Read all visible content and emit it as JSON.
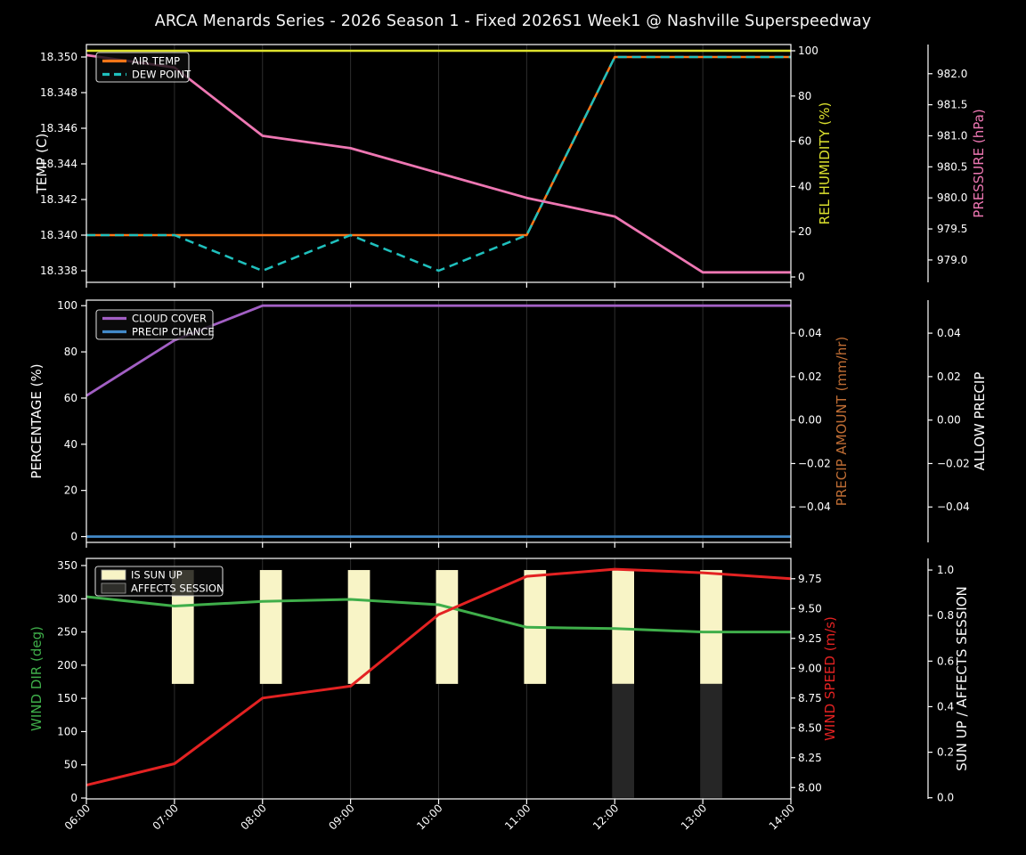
{
  "title": "ARCA Menards Series - 2026 Season 1 - Fixed 2026S1 Week1 @ Nashville Superspeedway",
  "colors": {
    "background": "#000000",
    "foreground": "#ffffff",
    "grid": "#2e2e2e",
    "air_temp": "#fd7618",
    "dew_point": "#1fc0bd",
    "rel_humidity": "#dde22e",
    "pressure": "#ee77b3",
    "cloud_cover": "#a25fc4",
    "precip_chance": "#4289c8",
    "precip_amount": "#bf6d34",
    "wind_dir": "#3fae4a",
    "wind_speed": "#e32222",
    "sun_up_bar": "#f8f4c6",
    "affects_session_bar": "#262626"
  },
  "chart_data": {
    "type": "line",
    "x": {
      "label": "",
      "min": 6,
      "max": 14,
      "tick_hours": [
        6,
        7,
        8,
        9,
        10,
        11,
        12,
        13,
        14
      ],
      "tick_labels": [
        "06:00",
        "07:00",
        "08:00",
        "09:00",
        "10:00",
        "11:00",
        "12:00",
        "13:00",
        "14:00"
      ]
    },
    "panels": [
      {
        "name": "temp-humidity-pressure",
        "axes": {
          "left": {
            "title": "TEMP (C)",
            "color": "#ffffff",
            "range": [
              18.33735,
              18.3507
            ],
            "ticks": [
              18.35,
              18.348,
              18.346,
              18.344,
              18.342,
              18.34,
              18.338
            ],
            "tick_labels": [
              "18.350",
              "18.348",
              "18.346",
              "18.344",
              "18.342",
              "18.340",
              "18.338"
            ]
          },
          "right1": {
            "title": "REL HUMIDITY (%)",
            "color": "#dde22e",
            "range": [
              -2.36,
              102.76
            ],
            "ticks": [
              100,
              80,
              60,
              40,
              20,
              0
            ],
            "tick_labels": [
              "100",
              "80",
              "60",
              "40",
              "20",
              "0"
            ]
          },
          "right2": {
            "title": "PRESSURE (hPa)",
            "color": "#ee77b3",
            "range": [
              978.64,
              982.47
            ],
            "ticks": [
              982.0,
              981.5,
              981.0,
              980.5,
              980.0,
              979.5,
              979.0
            ],
            "tick_labels": [
              "982.0",
              "981.5",
              "981.0",
              "980.5",
              "980.0",
              "979.5",
              "979.0"
            ]
          }
        },
        "series": [
          {
            "name": "AIR TEMP",
            "axis": "left",
            "color": "#fd7618",
            "style": "solid",
            "width": 2.5,
            "x": [
              6,
              7,
              8,
              9,
              10,
              11,
              12,
              13,
              14
            ],
            "y": [
              18.34,
              18.34,
              18.34,
              18.34,
              18.34,
              18.34,
              18.35,
              18.35,
              18.35
            ]
          },
          {
            "name": "DEW POINT",
            "axis": "left",
            "color": "#1fc0bd",
            "style": "dashed",
            "width": 2.5,
            "x": [
              6,
              7,
              8,
              9,
              10,
              11,
              12,
              13,
              14
            ],
            "y": [
              18.34,
              18.34,
              18.338,
              18.34,
              18.338,
              18.34,
              18.35,
              18.35,
              18.35
            ]
          },
          {
            "name": "REL HUMIDITY",
            "axis": "right1",
            "color": "#dde22e",
            "style": "solid",
            "width": 2.5,
            "x": [
              6,
              7,
              8,
              9,
              10,
              11,
              12,
              13,
              14
            ],
            "y": [
              100,
              100,
              100,
              100,
              100,
              100,
              100,
              100,
              100
            ]
          },
          {
            "name": "PRESSURE",
            "axis": "right2",
            "color": "#ee77b3",
            "style": "solid",
            "width": 2.8,
            "x": [
              6,
              7,
              8,
              9,
              10,
              11,
              12,
              13,
              14
            ],
            "y": [
              982.3,
              982.1,
              981.0,
              980.8,
              980.4,
              980.0,
              979.7,
              978.8,
              978.8
            ]
          }
        ],
        "legend": {
          "entries": [
            {
              "label": "AIR TEMP",
              "swatch": "line",
              "color": "#fd7618"
            },
            {
              "label": "DEW POINT",
              "swatch": "dash",
              "color": "#1fc0bd"
            }
          ]
        }
      },
      {
        "name": "cloud-precip",
        "axes": {
          "left": {
            "title": "PERCENTAGE (%)",
            "color": "#ffffff",
            "range": [
              -2.5,
              102.4
            ],
            "ticks": [
              100,
              80,
              60,
              40,
              20,
              0
            ],
            "tick_labels": [
              "100",
              "80",
              "60",
              "40",
              "20",
              "0"
            ]
          },
          "right1": {
            "title": "PRECIP AMOUNT (mm/hr)",
            "color": "#bf6d34",
            "range": [
              -0.0563,
              0.0552
            ],
            "ticks": [
              0.04,
              0.02,
              0.0,
              -0.02,
              -0.04
            ],
            "tick_labels": [
              "0.04",
              "0.02",
              "0.00",
              "−0.02",
              "−0.04"
            ]
          },
          "right2": {
            "title": "ALLOW PRECIP",
            "color": "#ffffff",
            "range": [
              -0.0563,
              0.0552
            ],
            "ticks": [
              0.04,
              0.02,
              0.0,
              -0.02,
              -0.04
            ],
            "tick_labels": [
              "0.04",
              "0.02",
              "0.00",
              "−0.02",
              "−0.04"
            ]
          }
        },
        "series": [
          {
            "name": "CLOUD COVER",
            "axis": "left",
            "color": "#a25fc4",
            "style": "solid",
            "width": 2.8,
            "x": [
              6,
              7,
              8,
              9,
              10,
              11,
              12,
              13,
              14
            ],
            "y": [
              61,
              85,
              100,
              100,
              100,
              100,
              100,
              100,
              100
            ]
          },
          {
            "name": "PRECIP CHANCE",
            "axis": "left",
            "color": "#4289c8",
            "style": "solid",
            "width": 2.8,
            "x": [
              6,
              7,
              8,
              9,
              10,
              11,
              12,
              13,
              14
            ],
            "y": [
              0,
              0,
              0,
              0,
              0,
              0,
              0,
              0,
              0
            ]
          }
        ],
        "legend": {
          "entries": [
            {
              "label": "CLOUD COVER",
              "swatch": "line",
              "color": "#a25fc4"
            },
            {
              "label": "PRECIP CHANCE",
              "swatch": "line",
              "color": "#4289c8"
            }
          ]
        }
      },
      {
        "name": "wind-sun",
        "axes": {
          "left": {
            "title": "WIND DIR (deg)",
            "color": "#3fae4a",
            "range": [
              -1.3,
              360.7
            ],
            "ticks": [
              350,
              300,
              250,
              200,
              150,
              100,
              50,
              0
            ],
            "tick_labels": [
              "350",
              "300",
              "250",
              "200",
              "150",
              "100",
              "50",
              "0"
            ]
          },
          "right1": {
            "title": "WIND SPEED (m/s)",
            "color": "#e32222",
            "range": [
              7.905,
              9.92
            ],
            "ticks": [
              9.75,
              9.5,
              9.25,
              9.0,
              8.75,
              8.5,
              8.25,
              8.0
            ],
            "tick_labels": [
              "9.75",
              "9.50",
              "9.25",
              "9.00",
              "8.75",
              "8.50",
              "8.25",
              "8.00"
            ]
          },
          "right2": {
            "title": "SUN UP / AFFECTS SESSION",
            "color": "#ffffff",
            "range": [
              -0.005,
              1.051
            ],
            "ticks": [
              1.0,
              0.8,
              0.6,
              0.4,
              0.2,
              0.0
            ],
            "tick_labels": [
              "1.0",
              "0.8",
              "0.6",
              "0.4",
              "0.2",
              "0.0"
            ]
          }
        },
        "bars": [
          {
            "name": "IS SUN UP",
            "axis": "right2",
            "color": "#f8f4c6",
            "hours": [
              7,
              8,
              9,
              10,
              11,
              12,
              13
            ],
            "base": 0.5,
            "top": 1.0
          },
          {
            "name": "AFFECTS SESSION",
            "axis": "right2",
            "color": "#262626",
            "hours": [
              12,
              13
            ],
            "base": 0.0,
            "top": 0.5
          }
        ],
        "series": [
          {
            "name": "WIND DIR",
            "axis": "left",
            "color": "#3fae4a",
            "style": "solid",
            "width": 3,
            "x": [
              6,
              7,
              8,
              9,
              10,
              11,
              12,
              13,
              14
            ],
            "y": [
              303,
              289,
              296,
              299,
              291,
              257,
              255,
              250,
              250
            ]
          },
          {
            "name": "WIND SPEED",
            "axis": "right1",
            "color": "#e32222",
            "style": "solid",
            "width": 3,
            "x": [
              6,
              7,
              8,
              9,
              10,
              11,
              12,
              13,
              14
            ],
            "y": [
              8.02,
              8.2,
              8.75,
              8.85,
              9.45,
              9.77,
              9.83,
              9.8,
              9.75
            ]
          }
        ],
        "legend": {
          "entries": [
            {
              "label": "IS SUN UP",
              "swatch": "patch",
              "color": "#f8f4c6"
            },
            {
              "label": "AFFECTS SESSION",
              "swatch": "patch",
              "color": "#2e2e2a"
            }
          ]
        },
        "show_x_labels": true
      }
    ]
  }
}
